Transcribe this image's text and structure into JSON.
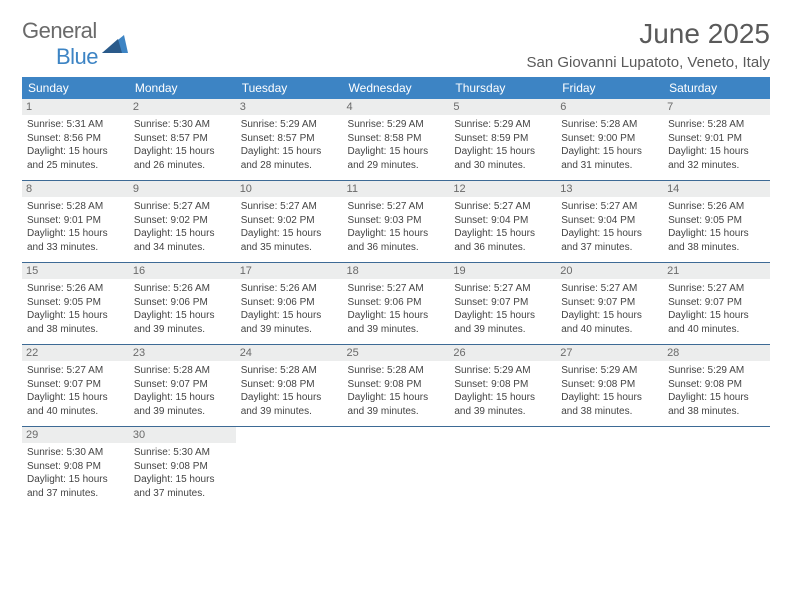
{
  "logo": {
    "general": "General",
    "blue": "Blue"
  },
  "title": "June 2025",
  "location": "San Giovanni Lupatoto, Veneto, Italy",
  "colors": {
    "header_bg": "#3d84c4",
    "header_text": "#ffffff",
    "daynum_bg": "#eceded",
    "row_border": "#3d6a95",
    "logo_gray": "#6a6a6a",
    "logo_blue": "#3d84c4"
  },
  "day_headers": [
    "Sunday",
    "Monday",
    "Tuesday",
    "Wednesday",
    "Thursday",
    "Friday",
    "Saturday"
  ],
  "days": [
    {
      "n": "1",
      "sr": "5:31 AM",
      "ss": "8:56 PM",
      "d1": "15 hours",
      "d2": "25 minutes."
    },
    {
      "n": "2",
      "sr": "5:30 AM",
      "ss": "8:57 PM",
      "d1": "15 hours",
      "d2": "26 minutes."
    },
    {
      "n": "3",
      "sr": "5:29 AM",
      "ss": "8:57 PM",
      "d1": "15 hours",
      "d2": "28 minutes."
    },
    {
      "n": "4",
      "sr": "5:29 AM",
      "ss": "8:58 PM",
      "d1": "15 hours",
      "d2": "29 minutes."
    },
    {
      "n": "5",
      "sr": "5:29 AM",
      "ss": "8:59 PM",
      "d1": "15 hours",
      "d2": "30 minutes."
    },
    {
      "n": "6",
      "sr": "5:28 AM",
      "ss": "9:00 PM",
      "d1": "15 hours",
      "d2": "31 minutes."
    },
    {
      "n": "7",
      "sr": "5:28 AM",
      "ss": "9:01 PM",
      "d1": "15 hours",
      "d2": "32 minutes."
    },
    {
      "n": "8",
      "sr": "5:28 AM",
      "ss": "9:01 PM",
      "d1": "15 hours",
      "d2": "33 minutes."
    },
    {
      "n": "9",
      "sr": "5:27 AM",
      "ss": "9:02 PM",
      "d1": "15 hours",
      "d2": "34 minutes."
    },
    {
      "n": "10",
      "sr": "5:27 AM",
      "ss": "9:02 PM",
      "d1": "15 hours",
      "d2": "35 minutes."
    },
    {
      "n": "11",
      "sr": "5:27 AM",
      "ss": "9:03 PM",
      "d1": "15 hours",
      "d2": "36 minutes."
    },
    {
      "n": "12",
      "sr": "5:27 AM",
      "ss": "9:04 PM",
      "d1": "15 hours",
      "d2": "36 minutes."
    },
    {
      "n": "13",
      "sr": "5:27 AM",
      "ss": "9:04 PM",
      "d1": "15 hours",
      "d2": "37 minutes."
    },
    {
      "n": "14",
      "sr": "5:26 AM",
      "ss": "9:05 PM",
      "d1": "15 hours",
      "d2": "38 minutes."
    },
    {
      "n": "15",
      "sr": "5:26 AM",
      "ss": "9:05 PM",
      "d1": "15 hours",
      "d2": "38 minutes."
    },
    {
      "n": "16",
      "sr": "5:26 AM",
      "ss": "9:06 PM",
      "d1": "15 hours",
      "d2": "39 minutes."
    },
    {
      "n": "17",
      "sr": "5:26 AM",
      "ss": "9:06 PM",
      "d1": "15 hours",
      "d2": "39 minutes."
    },
    {
      "n": "18",
      "sr": "5:27 AM",
      "ss": "9:06 PM",
      "d1": "15 hours",
      "d2": "39 minutes."
    },
    {
      "n": "19",
      "sr": "5:27 AM",
      "ss": "9:07 PM",
      "d1": "15 hours",
      "d2": "39 minutes."
    },
    {
      "n": "20",
      "sr": "5:27 AM",
      "ss": "9:07 PM",
      "d1": "15 hours",
      "d2": "40 minutes."
    },
    {
      "n": "21",
      "sr": "5:27 AM",
      "ss": "9:07 PM",
      "d1": "15 hours",
      "d2": "40 minutes."
    },
    {
      "n": "22",
      "sr": "5:27 AM",
      "ss": "9:07 PM",
      "d1": "15 hours",
      "d2": "40 minutes."
    },
    {
      "n": "23",
      "sr": "5:28 AM",
      "ss": "9:07 PM",
      "d1": "15 hours",
      "d2": "39 minutes."
    },
    {
      "n": "24",
      "sr": "5:28 AM",
      "ss": "9:08 PM",
      "d1": "15 hours",
      "d2": "39 minutes."
    },
    {
      "n": "25",
      "sr": "5:28 AM",
      "ss": "9:08 PM",
      "d1": "15 hours",
      "d2": "39 minutes."
    },
    {
      "n": "26",
      "sr": "5:29 AM",
      "ss": "9:08 PM",
      "d1": "15 hours",
      "d2": "39 minutes."
    },
    {
      "n": "27",
      "sr": "5:29 AM",
      "ss": "9:08 PM",
      "d1": "15 hours",
      "d2": "38 minutes."
    },
    {
      "n": "28",
      "sr": "5:29 AM",
      "ss": "9:08 PM",
      "d1": "15 hours",
      "d2": "38 minutes."
    },
    {
      "n": "29",
      "sr": "5:30 AM",
      "ss": "9:08 PM",
      "d1": "15 hours",
      "d2": "37 minutes."
    },
    {
      "n": "30",
      "sr": "5:30 AM",
      "ss": "9:08 PM",
      "d1": "15 hours",
      "d2": "37 minutes."
    }
  ],
  "labels": {
    "sunrise": "Sunrise:",
    "sunset": "Sunset:",
    "daylight": "Daylight:",
    "and": "and"
  }
}
